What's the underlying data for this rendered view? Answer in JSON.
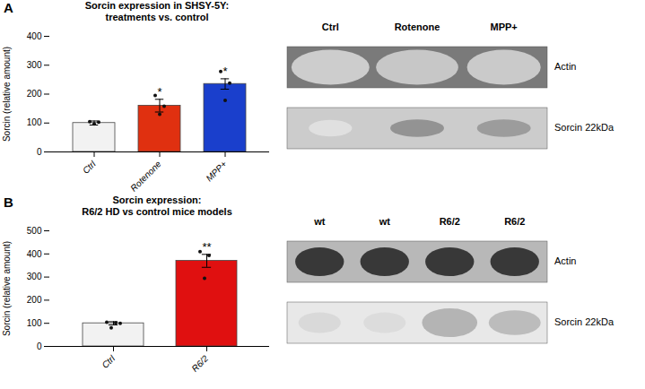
{
  "chart_data": [
    {
      "type": "bar",
      "title": "Sorcin expression in SHSY-5Y:\ntreatments vs. control",
      "ylabel": "Sorcin (relative amount)",
      "categories": [
        "Ctrl",
        "Rotenone",
        "MPP+"
      ],
      "values": [
        100,
        160,
        235
      ],
      "colors": [
        "#f2f2f2",
        "#e03010",
        "#1a3fcc"
      ],
      "error_bars": [
        7,
        22,
        18
      ],
      "points": [
        [
          105,
          97,
          103
        ],
        [
          195,
          130,
          158
        ],
        [
          278,
          178,
          238
        ]
      ],
      "significance": [
        null,
        "*",
        "*"
      ],
      "ylim": [
        0,
        400
      ],
      "yticks": [
        0,
        100,
        200,
        300,
        400
      ],
      "panel_label": "A",
      "blot": {
        "lanes": [
          "Ctrl",
          "Rotenone",
          "MPP+"
        ],
        "rows": [
          "Actin",
          "Sorcin 22kDa"
        ]
      }
    },
    {
      "type": "bar",
      "title": "Sorcin expression:\nR6/2 HD vs control mice models",
      "ylabel": "Sorcin (relative amount)",
      "categories": [
        "Ctrl",
        "R6/2"
      ],
      "values": [
        100,
        370
      ],
      "colors": [
        "#f2f2f2",
        "#e01010"
      ],
      "error_bars": [
        7,
        28
      ],
      "points": [
        [
          105,
          80,
          102,
          100
        ],
        [
          410,
          295,
          393
        ]
      ],
      "significance": [
        null,
        "**"
      ],
      "ylim": [
        0,
        500
      ],
      "yticks": [
        0,
        100,
        200,
        300,
        400,
        500
      ],
      "panel_label": "B",
      "blot": {
        "lanes": [
          "wt",
          "wt",
          "R6/2",
          "R6/2"
        ],
        "rows": [
          "Actin",
          "Sorcin 22kDa"
        ]
      }
    }
  ]
}
